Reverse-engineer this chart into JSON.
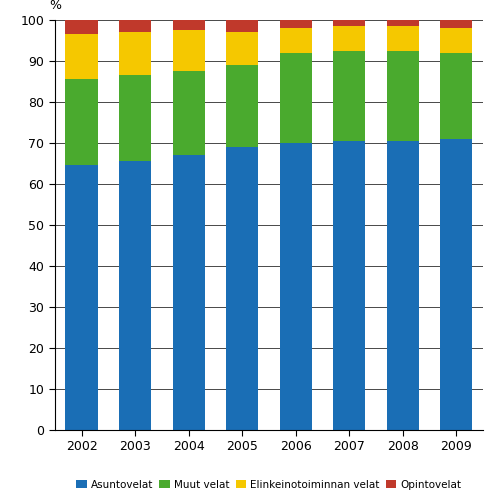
{
  "years": [
    2002,
    2003,
    2004,
    2005,
    2006,
    2007,
    2008,
    2009
  ],
  "asuntovelat": [
    64.5,
    65.5,
    67.0,
    69.0,
    70.0,
    70.5,
    70.5,
    71.0
  ],
  "muut_velat": [
    21.0,
    21.0,
    20.5,
    20.0,
    22.0,
    22.0,
    22.0,
    21.0
  ],
  "elinkeinotoiminnan": [
    11.0,
    10.5,
    10.0,
    8.0,
    6.0,
    6.0,
    6.0,
    6.0
  ],
  "opintovelat": [
    3.5,
    3.0,
    2.5,
    3.0,
    2.0,
    1.5,
    1.5,
    2.0
  ],
  "colors": {
    "asuntovelat": "#1a6eb5",
    "muut_velat": "#4aaa2e",
    "elinkeinotoiminnan": "#f5c800",
    "opintovelat": "#c0392b"
  },
  "labels": {
    "asuntovelat": "Asuntovelat",
    "muut_velat": "Muut velat",
    "elinkeinotoiminnan": "Elinkeinotoiminnan velat",
    "opintovelat": "Opintovelat"
  },
  "ylabel": "%",
  "ylim": [
    0,
    100
  ],
  "yticks": [
    0,
    10,
    20,
    30,
    40,
    50,
    60,
    70,
    80,
    90,
    100
  ],
  "background_color": "#ffffff",
  "bar_width": 0.6
}
